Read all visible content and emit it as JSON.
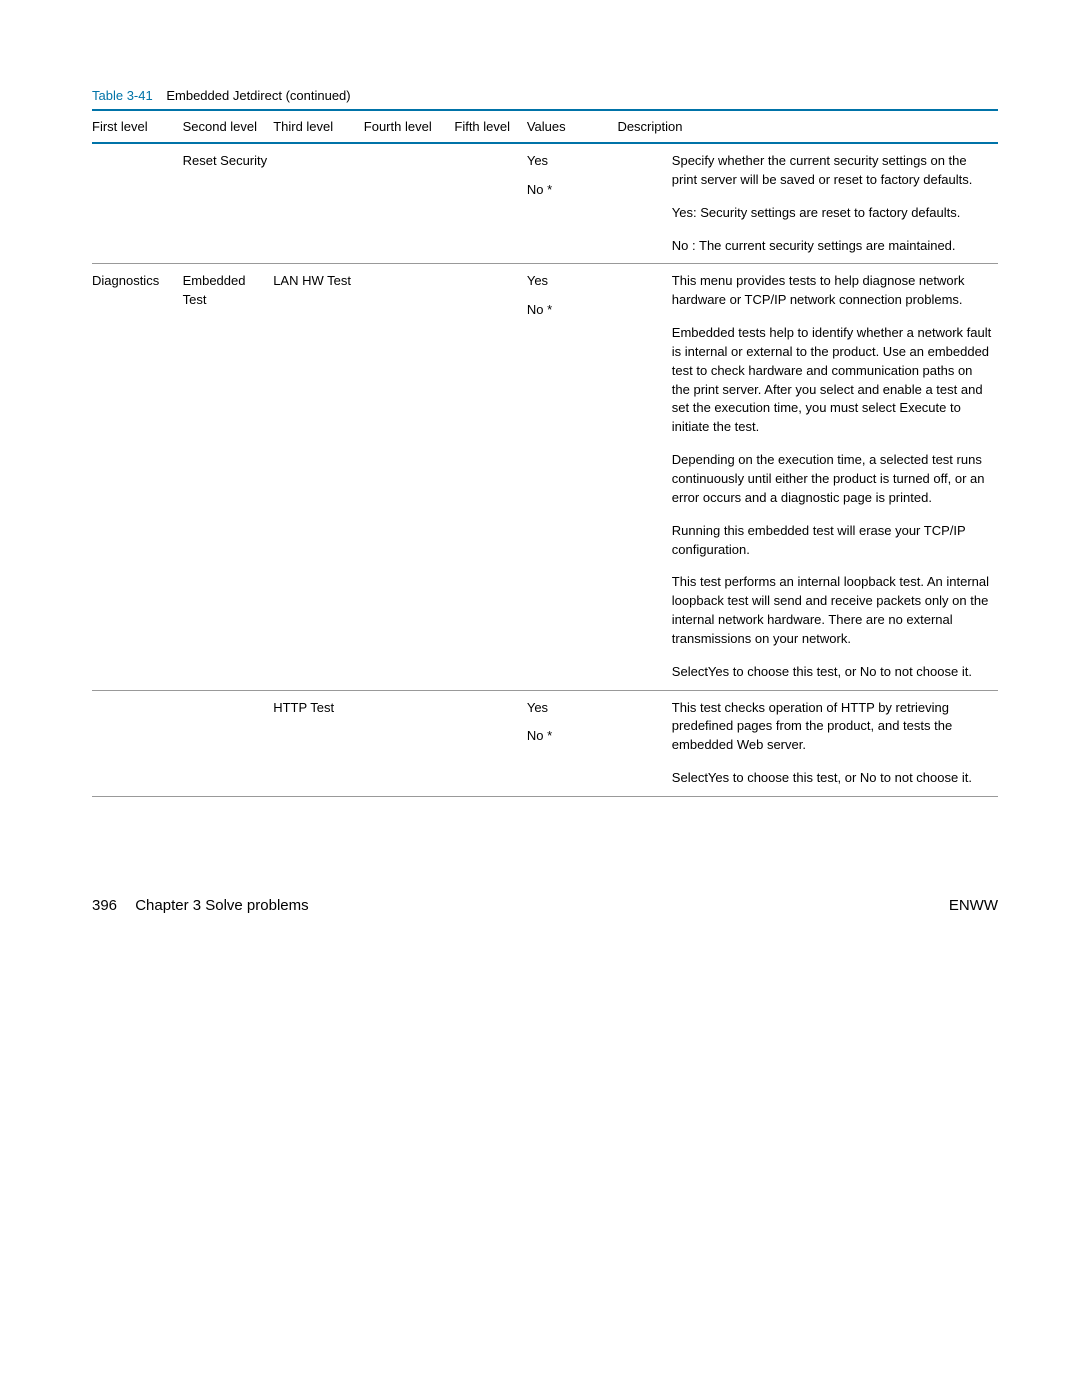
{
  "caption": {
    "label": "Table 3-41",
    "title": "Embedded Jetdirect (continued)"
  },
  "columns": [
    "First level",
    "Second level",
    "Third level",
    "Fourth level",
    "Fifth level",
    "Values",
    "Description"
  ],
  "col_widths_pct": [
    10,
    10,
    10,
    10,
    8,
    10,
    42
  ],
  "rows": [
    {
      "c0": "",
      "c1": "Reset Security",
      "c2": "",
      "c3": "",
      "c4": "",
      "values": [
        "Yes",
        "No *"
      ],
      "desc": [
        "Specify whether the current security settings on the print server will be saved or reset to factory defaults.",
        "Yes: Security settings are reset to factory defaults.",
        "No : The current security settings are maintained."
      ]
    },
    {
      "c0": "Diagnostics",
      "c1": "Embedded Test",
      "c2": "LAN HW Test",
      "c3": "",
      "c4": "",
      "values": [
        "Yes",
        "No *"
      ],
      "desc": [
        "This menu provides tests to help diagnose network hardware or TCP/IP network connection problems.",
        "Embedded tests help to identify whether a network fault is internal or external to the product. Use an embedded test to check hardware and communication paths on the print server. After you select and enable a test and set the execution time, you must select Execute  to initiate the test.",
        "Depending on the execution time, a selected test runs continuously until either the product is turned off, or an error occurs and a diagnostic page is printed.",
        "Running this embedded test will erase your TCP/IP configuration.",
        "This test performs an internal loopback test. An internal loopback test will send and receive packets only on the internal network hardware. There are no external transmissions on your network.",
        "SelectYes to choose this test, or No  to not choose it."
      ]
    },
    {
      "c0": "",
      "c1": "",
      "c2": "HTTP Test",
      "c3": "",
      "c4": "",
      "values": [
        "Yes",
        "No *"
      ],
      "desc": [
        "This test checks operation of HTTP by retrieving predefined pages from the product, and tests the embedded Web server.",
        "SelectYes to choose this test, or No  to not choose it."
      ]
    }
  ],
  "footer": {
    "page_number": "396",
    "chapter": "Chapter 3   Solve problems",
    "brand": "ENWW"
  }
}
